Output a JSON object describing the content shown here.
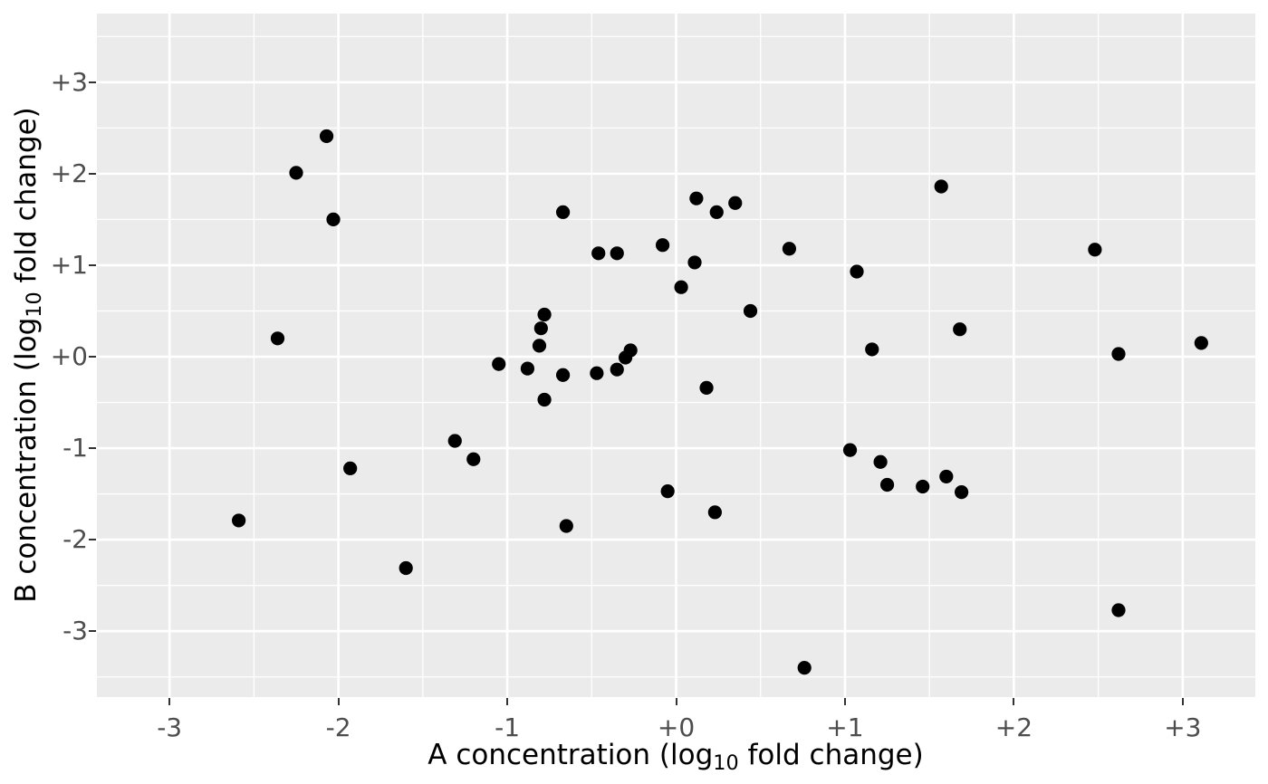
{
  "chart_data": {
    "type": "scatter",
    "xlabel_parts": {
      "pre": "A concentration (log",
      "sub": "10",
      "post": " fold change)"
    },
    "ylabel_parts": {
      "pre": "B concentration (log",
      "sub": "10",
      "post": " fold change)"
    },
    "x_ticks": {
      "values": [
        -3,
        -2,
        -1,
        0,
        1,
        2,
        3
      ],
      "labels": [
        "-3",
        "-2",
        "-1",
        "+0",
        "+1",
        "+2",
        "+3"
      ]
    },
    "y_ticks": {
      "values": [
        3,
        2,
        1,
        0,
        -1,
        -2,
        -3
      ],
      "labels": [
        "+3",
        "+2",
        "+1",
        "+0",
        "-1",
        "-2",
        "-3"
      ]
    },
    "xlim": [
      -3.43,
      3.43
    ],
    "ylim": [
      -3.72,
      3.75
    ],
    "major_grid_step": 1,
    "minor_grid_offset": 0.5,
    "grid": "on",
    "legend": "none",
    "point_radius_px": 7.6,
    "points": [
      [
        -2.59,
        -1.79
      ],
      [
        -2.36,
        0.2
      ],
      [
        -2.25,
        2.01
      ],
      [
        -2.07,
        2.41
      ],
      [
        -2.03,
        1.5
      ],
      [
        -1.93,
        -1.22
      ],
      [
        -1.6,
        -2.31
      ],
      [
        -1.31,
        -0.92
      ],
      [
        -1.2,
        -1.12
      ],
      [
        -1.05,
        -0.08
      ],
      [
        -0.88,
        -0.13
      ],
      [
        -0.81,
        0.12
      ],
      [
        -0.8,
        0.31
      ],
      [
        -0.78,
        0.46
      ],
      [
        -0.78,
        -0.47
      ],
      [
        -0.67,
        1.58
      ],
      [
        -0.67,
        -0.2
      ],
      [
        -0.65,
        -1.85
      ],
      [
        -0.47,
        -0.18
      ],
      [
        -0.46,
        1.13
      ],
      [
        -0.35,
        1.13
      ],
      [
        -0.35,
        -0.14
      ],
      [
        -0.3,
        -0.01
      ],
      [
        -0.27,
        0.07
      ],
      [
        -0.08,
        1.22
      ],
      [
        -0.05,
        -1.47
      ],
      [
        0.03,
        0.76
      ],
      [
        0.11,
        1.03
      ],
      [
        0.12,
        1.73
      ],
      [
        0.18,
        -0.34
      ],
      [
        0.23,
        -1.7
      ],
      [
        0.24,
        1.58
      ],
      [
        0.35,
        1.68
      ],
      [
        0.44,
        0.5
      ],
      [
        0.67,
        1.18
      ],
      [
        0.76,
        -3.4
      ],
      [
        1.03,
        -1.02
      ],
      [
        1.07,
        0.93
      ],
      [
        1.16,
        0.08
      ],
      [
        1.21,
        -1.15
      ],
      [
        1.25,
        -1.4
      ],
      [
        1.46,
        -1.42
      ],
      [
        1.57,
        1.86
      ],
      [
        1.6,
        -1.31
      ],
      [
        1.68,
        0.3
      ],
      [
        1.69,
        -1.48
      ],
      [
        2.48,
        1.17
      ],
      [
        2.62,
        0.03
      ],
      [
        2.62,
        -2.77
      ],
      [
        3.11,
        0.15
      ]
    ],
    "styles": {
      "panel_bg": "#EBEBEB",
      "grid_color": "#FFFFFF",
      "point_color": "#000000",
      "tick_label_color": "#4D4D4D",
      "axis_title_color": "#000000",
      "tick_mark_color": "#333333",
      "figure_bg": "#FFFFFF"
    }
  }
}
